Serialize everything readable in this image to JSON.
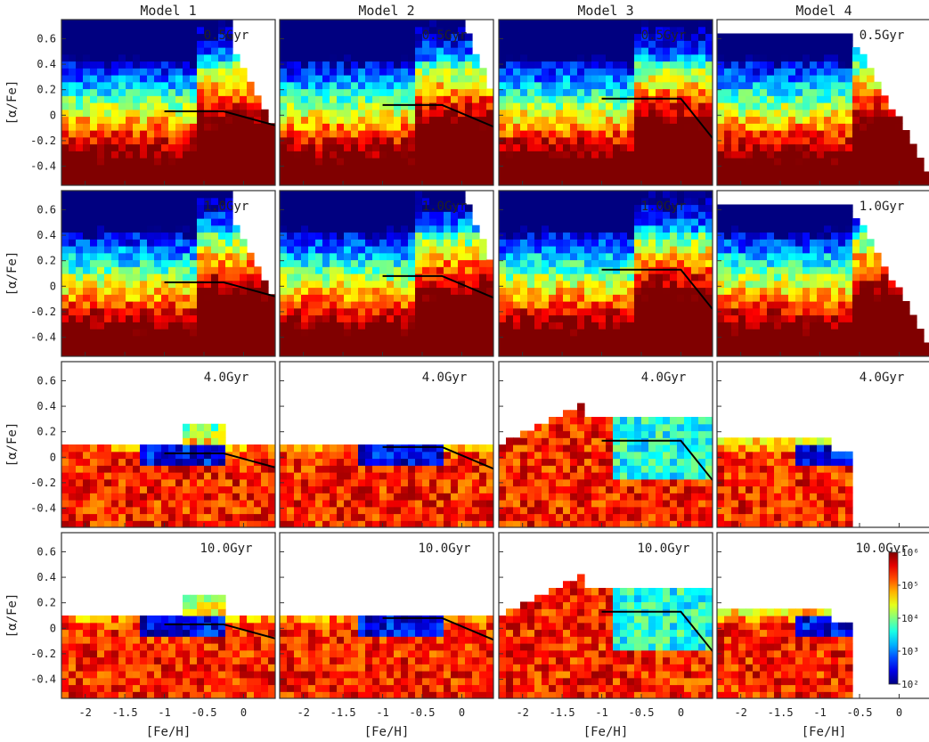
{
  "chart_data": {
    "type": "heatmap",
    "layout": "4 rows x 4 columns",
    "column_titles": [
      "Model 1",
      "Model 2",
      "Model 3",
      "Model 4"
    ],
    "row_ages": [
      "0.5Gyr",
      "1.0Gyr",
      "4.0Gyr",
      "10.0Gyr"
    ],
    "xlabel": "[Fe/H]",
    "ylabel": "[α/Fe]",
    "xlim": [
      -2.3,
      0.4
    ],
    "ylim": [
      -0.55,
      0.75
    ],
    "xticks": [
      -2,
      -1.5,
      -1,
      -0.5,
      0
    ],
    "xtick_labels": [
      "-2",
      "-1.5",
      "-1",
      "-0.5",
      "0"
    ],
    "yticks": [
      -0.4,
      -0.2,
      0,
      0.2,
      0.4,
      0.6
    ],
    "ytick_labels": [
      "-0.4",
      "-0.2",
      "0",
      "0.2",
      "0.4",
      "0.6"
    ],
    "colorbar": {
      "scale": "log",
      "range": [
        100,
        1000000
      ],
      "tick_labels": [
        "10²",
        "10³",
        "10⁴",
        "10⁵",
        "10⁶"
      ],
      "colormap": "jet",
      "placement": "inside bottom-right panel"
    },
    "reference_lines": [
      {
        "model": "Model 1",
        "points": [
          [
            -1.0,
            0.03
          ],
          [
            -0.25,
            0.03
          ],
          [
            0.4,
            -0.08
          ]
        ]
      },
      {
        "model": "Model 2",
        "points": [
          [
            -1.0,
            0.08
          ],
          [
            -0.25,
            0.08
          ],
          [
            0.4,
            -0.09
          ]
        ]
      },
      {
        "model": "Model 3",
        "points": [
          [
            -1.0,
            0.13
          ],
          [
            0.0,
            0.13
          ],
          [
            0.4,
            -0.18
          ]
        ]
      },
      {
        "model": "Model 4",
        "points": []
      }
    ],
    "panels_description": "Binned number density of stars in the [Fe/H]-[α/Fe] plane per model and age; blue = low density (~10^2), red = high density (~10^6)."
  }
}
